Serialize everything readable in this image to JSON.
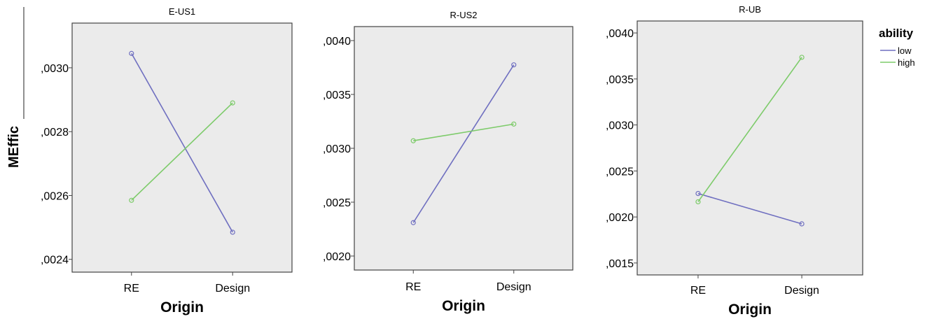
{
  "ylabel": "MEffic",
  "legend": {
    "title": "ability",
    "entries": [
      {
        "label": "low",
        "color": "#6f6fc0"
      },
      {
        "label": "high",
        "color": "#7dcb6a"
      }
    ]
  },
  "chart_data": [
    {
      "type": "line",
      "title": "E-US1",
      "xlabel": "Origin",
      "ylabel": "MEffic",
      "categories": [
        "RE",
        "Design"
      ],
      "ylim": [
        0.00236,
        0.00314
      ],
      "yticks": [
        0.0024,
        0.0026,
        0.0028,
        0.003
      ],
      "ytick_labels": [
        ",0024",
        ",0026",
        ",0028",
        ",0030"
      ],
      "series": [
        {
          "name": "low",
          "values": [
            0.003045,
            0.002485
          ]
        },
        {
          "name": "high",
          "values": [
            0.002585,
            0.00289
          ]
        }
      ]
    },
    {
      "type": "line",
      "title": "R-US2",
      "xlabel": "Origin",
      "categories": [
        "RE",
        "Design"
      ],
      "ylim": [
        0.00187,
        0.00413
      ],
      "yticks": [
        0.002,
        0.0025,
        0.003,
        0.0035,
        0.004
      ],
      "ytick_labels": [
        ",0020",
        ",0025",
        ",0030",
        ",0035",
        ",0040"
      ],
      "series": [
        {
          "name": "low",
          "values": [
            0.00231,
            0.003775
          ]
        },
        {
          "name": "high",
          "values": [
            0.00307,
            0.003225
          ]
        }
      ]
    },
    {
      "type": "line",
      "title": "R-UB",
      "xlabel": "Origin",
      "categories": [
        "RE",
        "Design"
      ],
      "ylim": [
        0.00137,
        0.00413
      ],
      "yticks": [
        0.0015,
        0.002,
        0.0025,
        0.003,
        0.0035,
        0.004
      ],
      "ytick_labels": [
        ",0015",
        ",0020",
        ",0025",
        ",0030",
        ",0035",
        ",0040"
      ],
      "series": [
        {
          "name": "low",
          "values": [
            0.002255,
            0.001925
          ]
        },
        {
          "name": "high",
          "values": [
            0.002165,
            0.003735
          ]
        }
      ]
    }
  ],
  "colors": {
    "plot_bg": "#ebebeb",
    "frame": "#444444"
  }
}
